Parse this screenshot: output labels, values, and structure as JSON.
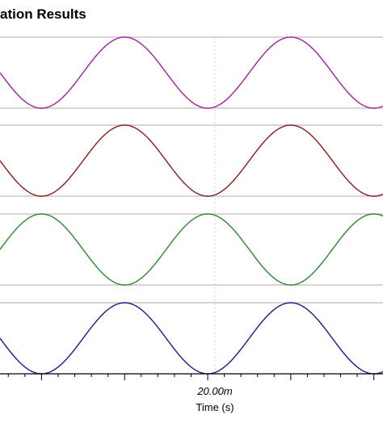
{
  "chart_data": {
    "type": "line",
    "title": "ation Results",
    "xlabel": "Time (s)",
    "x_tick_label": "20.00m",
    "xlim": [
      -0.015,
      0.0311
    ],
    "grid": true,
    "series": [
      {
        "color": "#a020a0",
        "amplitude": 1,
        "period": 0.02,
        "phase": 0.0
      },
      {
        "color": "#8b1a1a",
        "amplitude": 1,
        "period": 0.02,
        "phase": 0.0
      },
      {
        "color": "#2a8a2a",
        "amplitude": 1,
        "period": 0.02,
        "phase": 0.5
      },
      {
        "color": "#1a1a8b",
        "amplitude": 1,
        "period": 0.02,
        "phase": 0.0
      }
    ]
  }
}
